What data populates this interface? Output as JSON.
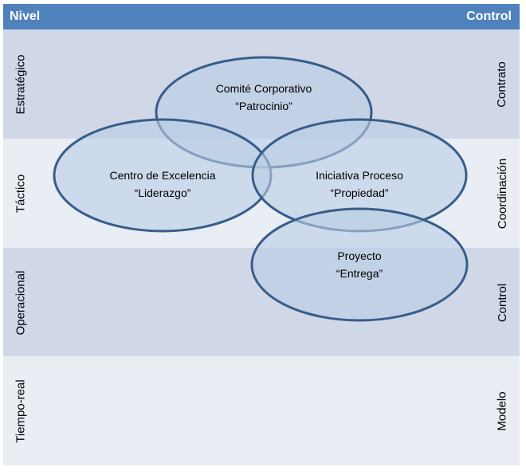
{
  "header": {
    "left": "Nivel",
    "right": "Control"
  },
  "levels": [
    {
      "left": "Estratégico",
      "right": "Contrato"
    },
    {
      "left": "Táctico",
      "right": "Coordinación"
    },
    {
      "left": "Operacional",
      "right": "Control"
    },
    {
      "left": "Tiempo-real",
      "right": "Modelo"
    }
  ],
  "ellipses": [
    {
      "line1": "Comité Corporativo",
      "line2": "“Patrocinio”"
    },
    {
      "line1": "Centro de Excelencia",
      "line2": "“Liderazgo”"
    },
    {
      "line1": "Iniciativa Proceso",
      "line2": "“Propiedad”"
    },
    {
      "line1": "Proyecto",
      "line2": "“Entrega”"
    }
  ],
  "colors": {
    "header": "#4f81bd",
    "band_dark": "#d0d8e8",
    "band_light": "#e9edf4",
    "ellipse_stroke": "#385d8a",
    "ellipse_fill": "#b9cde5"
  }
}
